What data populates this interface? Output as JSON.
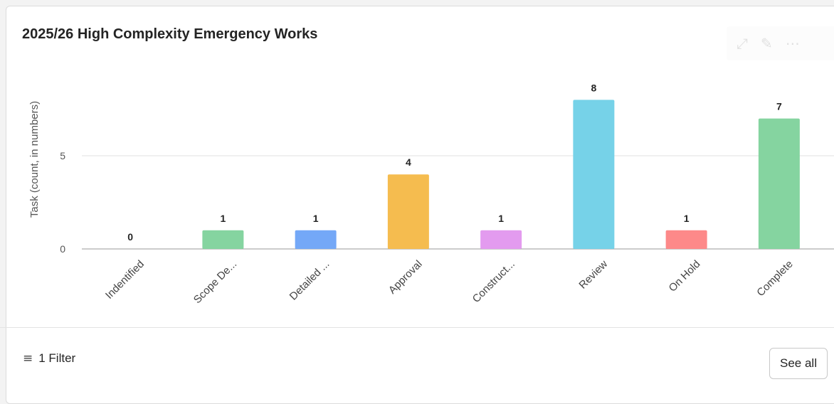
{
  "card": {
    "title": "2025/26 High Complexity Emergency Works",
    "actions": [
      {
        "name": "expand-icon",
        "glyph": "⤢"
      },
      {
        "name": "edit-pencil-icon",
        "glyph": "✎"
      },
      {
        "name": "more-options-icon",
        "glyph": "⋯"
      }
    ]
  },
  "footer": {
    "filter_icon": "≡",
    "filter_label": "1 Filter",
    "see_all_label": "See all"
  },
  "chart_data": {
    "type": "bar",
    "title": "2025/26 High Complexity Emergency Works",
    "ylabel": "Task (count, in numbers)",
    "xlabel": "",
    "ylim": [
      0,
      9
    ],
    "yticks": [
      0,
      5
    ],
    "grid": true,
    "legend": "none",
    "categories": [
      "Indentified",
      "Scope De...",
      "Detailed ...",
      "Approval",
      "Construct...",
      "Review",
      "On Hold",
      "Complete"
    ],
    "values": [
      0,
      1,
      1,
      4,
      1,
      8,
      1,
      7
    ],
    "colors": [
      "#a9a9a9",
      "#85d4a0",
      "#74a8f7",
      "#f5bc4f",
      "#e39bef",
      "#76d2e8",
      "#fd8989",
      "#85d4a0"
    ]
  }
}
